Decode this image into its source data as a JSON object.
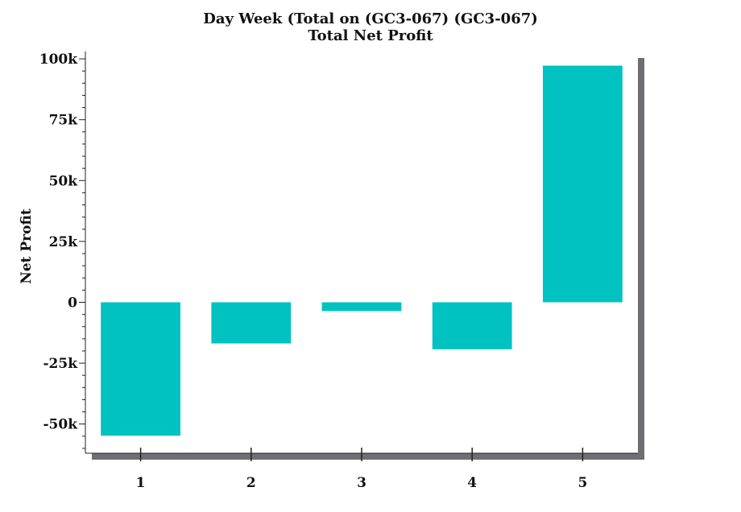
{
  "chart_data": {
    "type": "bar",
    "title": "Day Week  (Total on (GC3-067) (GC3-067)",
    "subtitle": "Total Net Profit",
    "xlabel": "",
    "ylabel": "Net Profit",
    "categories": [
      "1",
      "2",
      "3",
      "4",
      "5"
    ],
    "values": [
      -54800,
      -16900,
      -3600,
      -19300,
      97200
    ],
    "ylim": [
      -62000,
      103000
    ],
    "yticks": [
      -50000,
      -25000,
      0,
      25000,
      50000,
      75000,
      100000
    ],
    "ytick_labels": [
      "-50k",
      "-25k",
      "0",
      "25k",
      "50k",
      "75k",
      "100k"
    ],
    "y_minor_step": 5000,
    "grid": false,
    "legend": "none",
    "colors": {
      "bar": "#00c2c0",
      "shadow": "#6e6e74",
      "axis": "#222222"
    }
  }
}
